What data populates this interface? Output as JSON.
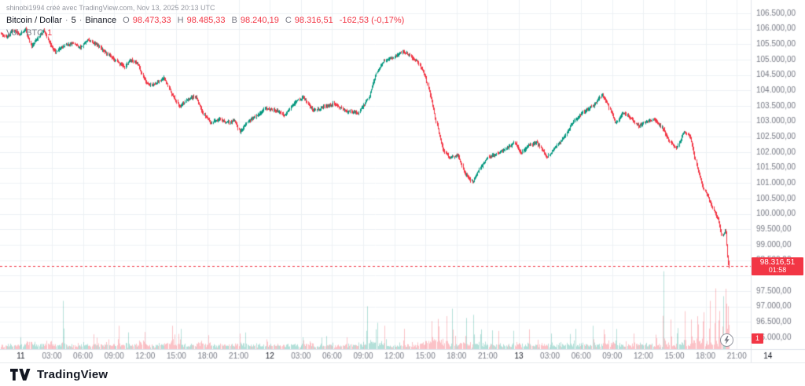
{
  "watermark": "shinobi1994 créé avec TradingView.com, Nov 13, 2025 20:13 UTC",
  "header": {
    "symbol": "Bitcoin / Dollar",
    "separator": "·",
    "interval": "5",
    "exchange": "Binance",
    "ohlc": {
      "o_label": "O",
      "o": "98.473,33",
      "h_label": "H",
      "h": "98.485,33",
      "l_label": "B",
      "l": "98.240,19",
      "c_label": "C",
      "c": "98.316,51",
      "change": "-162,53 (-0,17%)"
    },
    "volume": {
      "label": "Vol · BTC",
      "value": "1"
    }
  },
  "last_price": {
    "value": 98316.51,
    "label": "98.316,51",
    "countdown": "01:58"
  },
  "volume_badge": "1",
  "bottom_bar": {
    "brand": "TradingView"
  },
  "colors": {
    "up": "#089981",
    "down": "#f23645",
    "vol_up": "rgba(8,153,129,0.3)",
    "vol_down": "rgba(242,54,69,0.3)",
    "grid": "#edf0f4",
    "axis_text": "#787b86",
    "day_text": "#131722",
    "border": "#e0e3eb",
    "last_line": "#f23645"
  },
  "price_scale": {
    "ticks": [
      {
        "value": 106500,
        "label": "106.500,00"
      },
      {
        "value": 106000,
        "label": "106.000,00"
      },
      {
        "value": 105500,
        "label": "105.500,00"
      },
      {
        "value": 105000,
        "label": "105.000,00"
      },
      {
        "value": 104500,
        "label": "104.500,00"
      },
      {
        "value": 104000,
        "label": "104.000,00"
      },
      {
        "value": 103500,
        "label": "103.500,00"
      },
      {
        "value": 103000,
        "label": "103.000,00"
      },
      {
        "value": 102500,
        "label": "102.500,00"
      },
      {
        "value": 102000,
        "label": "102.000,00"
      },
      {
        "value": 101500,
        "label": "101.500,00"
      },
      {
        "value": 101000,
        "label": "101.000,00"
      },
      {
        "value": 100500,
        "label": "100.500,00"
      },
      {
        "value": 100000,
        "label": "100.000,00"
      },
      {
        "value": 99500,
        "label": "99.500,00"
      },
      {
        "value": 99000,
        "label": "99.000,00"
      },
      {
        "value": 98500,
        "label": "98.500,00"
      },
      {
        "value": 97500,
        "label": "97.500,00"
      },
      {
        "value": 97000,
        "label": "97.000,00"
      },
      {
        "value": 96500,
        "label": "96.500,00"
      },
      {
        "value": 96000,
        "label": "96.000,00"
      }
    ]
  },
  "time_axis": {
    "ticks": [
      {
        "t": 2,
        "label": "11",
        "major": true
      },
      {
        "t": 5,
        "label": "03:00"
      },
      {
        "t": 8,
        "label": "06:00"
      },
      {
        "t": 11,
        "label": "09:00"
      },
      {
        "t": 14,
        "label": "12:00"
      },
      {
        "t": 17,
        "label": "15:00"
      },
      {
        "t": 20,
        "label": "18:00"
      },
      {
        "t": 23,
        "label": "21:00"
      },
      {
        "t": 26,
        "label": "12",
        "major": true
      },
      {
        "t": 29,
        "label": "03:00"
      },
      {
        "t": 32,
        "label": "06:00"
      },
      {
        "t": 35,
        "label": "09:00"
      },
      {
        "t": 38,
        "label": "12:00"
      },
      {
        "t": 41,
        "label": "15:00"
      },
      {
        "t": 44,
        "label": "18:00"
      },
      {
        "t": 47,
        "label": "21:00"
      },
      {
        "t": 50,
        "label": "13",
        "major": true
      },
      {
        "t": 53,
        "label": "03:00"
      },
      {
        "t": 56,
        "label": "06:00"
      },
      {
        "t": 59,
        "label": "09:00"
      },
      {
        "t": 62,
        "label": "12:00"
      },
      {
        "t": 65,
        "label": "15:00"
      },
      {
        "t": 68,
        "label": "18:00"
      },
      {
        "t": 71,
        "label": "21:00"
      },
      {
        "t": 74,
        "label": "14",
        "major": true
      }
    ]
  },
  "chart_data": {
    "type": "candlestick",
    "title": "Bitcoin / Dollar · 5 · Binance",
    "interval_minutes": 5,
    "x_start": "Nov 10 22:00 UTC",
    "x_end": "Nov 13 20:15 UTC",
    "ylim": [
      96000,
      106500
    ],
    "grid": true,
    "legend_position": "top-left",
    "ohlc_last": {
      "open": 98473.33,
      "high": 98485.33,
      "low": 98240.19,
      "close": 98316.51
    },
    "change_abs": -162.53,
    "change_pct": -0.17,
    "price_path": [
      [
        0,
        105850
      ],
      [
        0.6,
        105720
      ],
      [
        1.2,
        105950
      ],
      [
        1.9,
        105800
      ],
      [
        2.4,
        106020
      ],
      [
        3.0,
        105450
      ],
      [
        3.7,
        105750
      ],
      [
        4.2,
        105950
      ],
      [
        4.8,
        105500
      ],
      [
        5.3,
        105250
      ],
      [
        6.1,
        105450
      ],
      [
        7.0,
        105520
      ],
      [
        7.7,
        105380
      ],
      [
        8.5,
        105650
      ],
      [
        9.1,
        105520
      ],
      [
        9.8,
        105330
      ],
      [
        10.6,
        105120
      ],
      [
        11.4,
        104880
      ],
      [
        12.0,
        104780
      ],
      [
        12.6,
        105000
      ],
      [
        13.3,
        104840
      ],
      [
        13.8,
        104380
      ],
      [
        14.4,
        104150
      ],
      [
        15.2,
        104260
      ],
      [
        15.8,
        104420
      ],
      [
        16.5,
        103880
      ],
      [
        17.3,
        103480
      ],
      [
        18.0,
        103700
      ],
      [
        18.8,
        103820
      ],
      [
        19.5,
        103300
      ],
      [
        20.3,
        102950
      ],
      [
        21.1,
        103080
      ],
      [
        21.8,
        102950
      ],
      [
        22.6,
        103020
      ],
      [
        23.1,
        102650
      ],
      [
        23.9,
        103000
      ],
      [
        24.6,
        103170
      ],
      [
        25.6,
        103420
      ],
      [
        26.7,
        103340
      ],
      [
        27.4,
        103180
      ],
      [
        28.4,
        103620
      ],
      [
        29.2,
        103780
      ],
      [
        30.2,
        103340
      ],
      [
        31.1,
        103460
      ],
      [
        32.2,
        103570
      ],
      [
        33.3,
        103340
      ],
      [
        34.5,
        103280
      ],
      [
        35.5,
        103750
      ],
      [
        36.2,
        104520
      ],
      [
        37.0,
        104960
      ],
      [
        37.9,
        105060
      ],
      [
        38.8,
        105280
      ],
      [
        39.4,
        105140
      ],
      [
        40.2,
        104940
      ],
      [
        40.9,
        104520
      ],
      [
        41.5,
        103750
      ],
      [
        42.1,
        102850
      ],
      [
        42.7,
        102050
      ],
      [
        43.3,
        101830
      ],
      [
        44.1,
        101920
      ],
      [
        44.8,
        101280
      ],
      [
        45.5,
        101030
      ],
      [
        46.2,
        101480
      ],
      [
        47.0,
        101820
      ],
      [
        47.9,
        101960
      ],
      [
        48.9,
        102160
      ],
      [
        49.6,
        102320
      ],
      [
        50.2,
        101960
      ],
      [
        50.9,
        102230
      ],
      [
        51.7,
        102320
      ],
      [
        52.7,
        101840
      ],
      [
        53.4,
        102120
      ],
      [
        54.4,
        102520
      ],
      [
        55.3,
        103020
      ],
      [
        56.2,
        103320
      ],
      [
        57.2,
        103520
      ],
      [
        58.0,
        103880
      ],
      [
        58.7,
        103440
      ],
      [
        59.3,
        102930
      ],
      [
        60.0,
        103290
      ],
      [
        60.8,
        103090
      ],
      [
        61.5,
        102840
      ],
      [
        62.3,
        103010
      ],
      [
        63.0,
        103060
      ],
      [
        63.8,
        102790
      ],
      [
        64.5,
        102340
      ],
      [
        65.2,
        102140
      ],
      [
        65.9,
        102660
      ],
      [
        66.5,
        102480
      ],
      [
        67.1,
        101580
      ],
      [
        67.7,
        100880
      ],
      [
        68.3,
        100480
      ],
      [
        68.8,
        100080
      ],
      [
        69.2,
        99830
      ],
      [
        69.55,
        99280
      ],
      [
        69.9,
        99500
      ],
      [
        70.05,
        98700
      ],
      [
        70.21,
        98316.51
      ]
    ],
    "volume_spikes": [
      [
        6.1,
        0.62
      ],
      [
        9.0,
        0.18
      ],
      [
        11.4,
        0.3
      ],
      [
        13.9,
        0.22
      ],
      [
        16.6,
        0.3
      ],
      [
        17.4,
        0.26
      ],
      [
        20.1,
        0.18
      ],
      [
        23.1,
        0.2
      ],
      [
        25.7,
        0.15
      ],
      [
        29.2,
        0.18
      ],
      [
        31.0,
        0.14
      ],
      [
        33.4,
        0.15
      ],
      [
        35.4,
        0.55
      ],
      [
        36.3,
        0.4
      ],
      [
        37.1,
        0.3
      ],
      [
        38.9,
        0.26
      ],
      [
        41.6,
        0.36
      ],
      [
        42.2,
        0.46
      ],
      [
        43.0,
        0.4
      ],
      [
        43.6,
        0.52
      ],
      [
        44.9,
        0.4
      ],
      [
        45.6,
        0.44
      ],
      [
        46.3,
        0.3
      ],
      [
        48.0,
        0.22
      ],
      [
        51.0,
        0.24
      ],
      [
        53.1,
        0.2
      ],
      [
        55.4,
        0.26
      ],
      [
        57.1,
        0.3
      ],
      [
        58.2,
        0.3
      ],
      [
        59.4,
        0.26
      ],
      [
        61.1,
        0.2
      ],
      [
        63.2,
        0.22
      ],
      [
        63.9,
        1.0
      ],
      [
        64.6,
        0.38
      ],
      [
        65.3,
        0.32
      ],
      [
        66.0,
        0.46
      ],
      [
        66.6,
        0.38
      ],
      [
        67.2,
        0.5
      ],
      [
        67.8,
        0.56
      ],
      [
        68.4,
        0.62
      ],
      [
        68.9,
        0.78
      ],
      [
        69.3,
        0.58
      ],
      [
        69.65,
        0.68
      ],
      [
        69.95,
        0.92
      ],
      [
        70.15,
        0.55
      ]
    ]
  }
}
